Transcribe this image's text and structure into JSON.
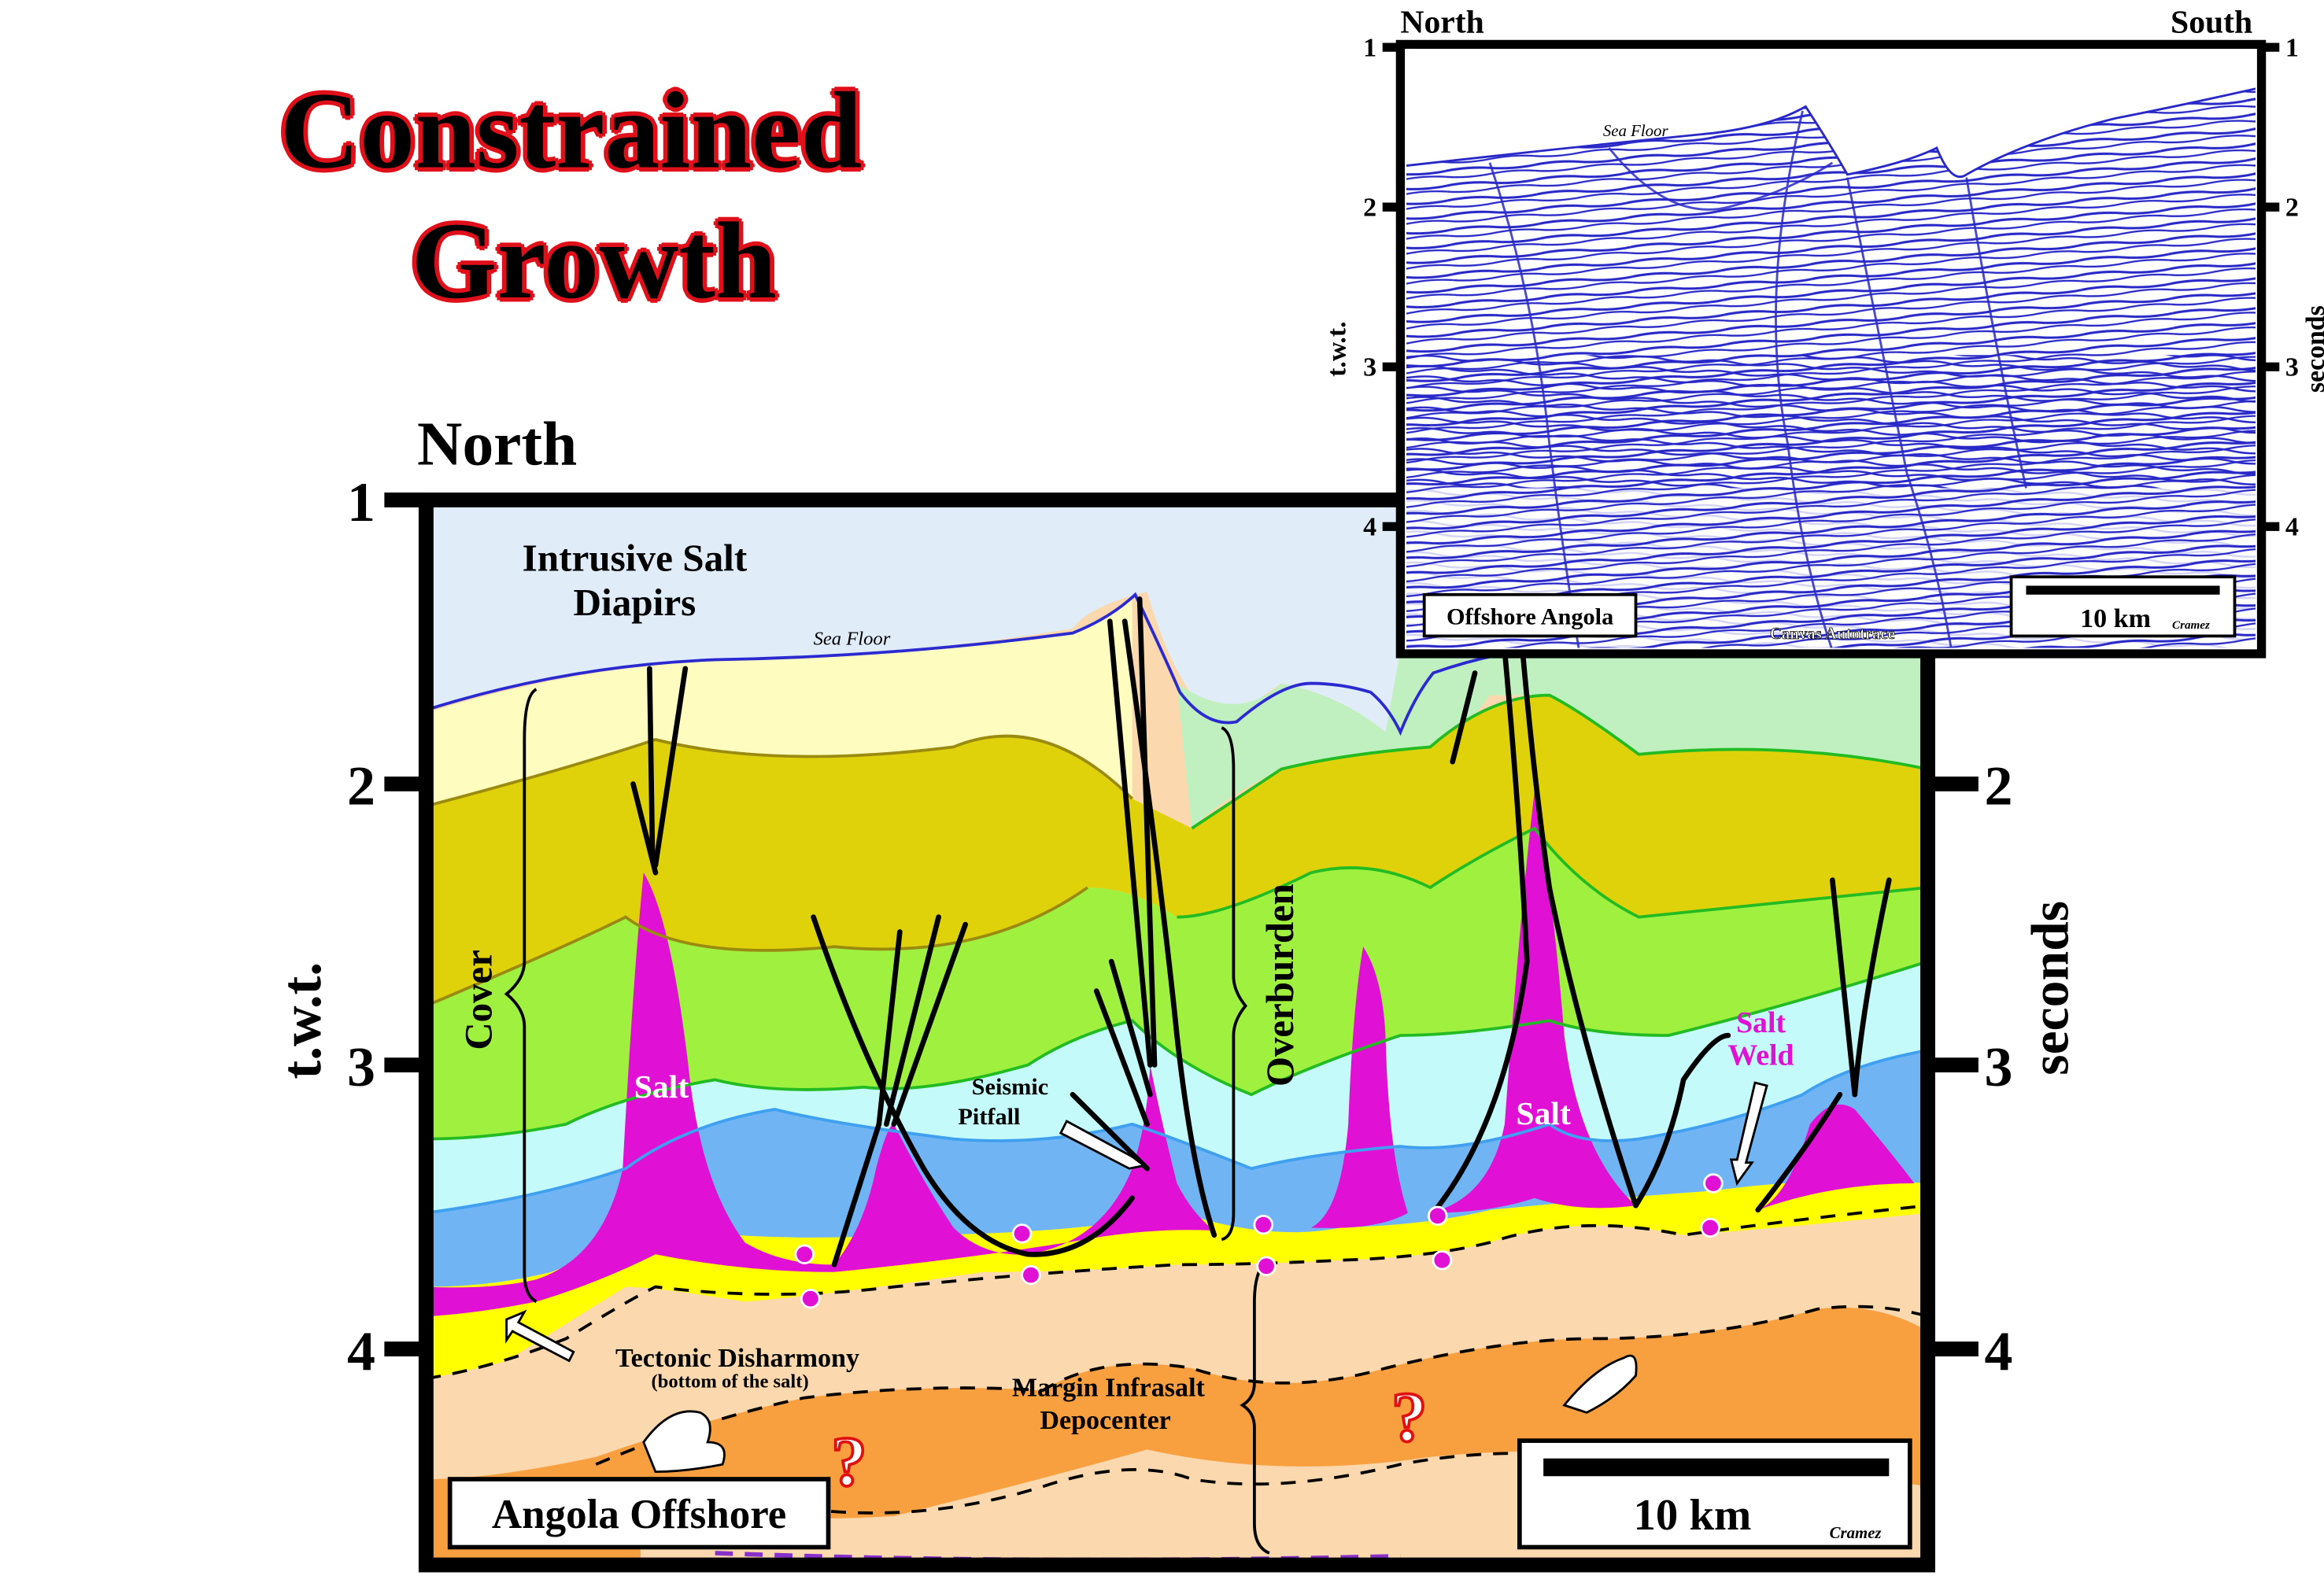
{
  "title": {
    "line1": "Constrained",
    "line2": "Growth"
  },
  "main_section": {
    "north_label": "North",
    "axis_left_ticks": [
      "1",
      "2",
      "3",
      "4"
    ],
    "axis_right_ticks": [
      "2",
      "3",
      "4"
    ],
    "axis_left_label": "t.w.t.",
    "axis_right_label": "seconds",
    "labels": {
      "intrusive_line1": "Intrusive Salt",
      "intrusive_line2": "Diapirs",
      "sea_floor": "Sea Floor",
      "cover": "Cover",
      "overburden": "Overburden",
      "salt_left": "Salt",
      "salt_right": "Salt",
      "salt_weld_line1": "Salt",
      "salt_weld_line2": "Weld",
      "seismic_pitfall_line1": "Seismic",
      "seismic_pitfall_line2": "Pitfall",
      "tectonic_disharmony": "Tectonic Disharmony",
      "bottom_of_salt": "(bottom of the salt)",
      "margin_line1": "Margin Infrasalt",
      "margin_line2": "Depocenter",
      "question_mark": "?",
      "location_box": "Angola Offshore",
      "scale": "10 km",
      "credit": "Cramez"
    }
  },
  "inset": {
    "north_label": "North",
    "south_label": "South",
    "axis_ticks": [
      "1",
      "2",
      "3",
      "4"
    ],
    "axis_left_label": "t.w.t.",
    "axis_right_label": "seconds",
    "sea_floor": "Sea Floor",
    "location_box": "Offshore Angola",
    "autotrace": "Canvas Autotrace",
    "scale": "10 km",
    "credit": "Cramez"
  },
  "colors": {
    "title_outline": "#e0101a",
    "sky": "#e0ecf8",
    "salt": "#e010d4",
    "yellow": "#ffff00",
    "orange_light": "#fcd8ae",
    "orange_dark": "#f8a040",
    "lime": "#a0f040",
    "olive": "#e0d20a",
    "cyan": "#c4fafa",
    "blue": "#70b4f4",
    "seismic": "#2828c8"
  }
}
